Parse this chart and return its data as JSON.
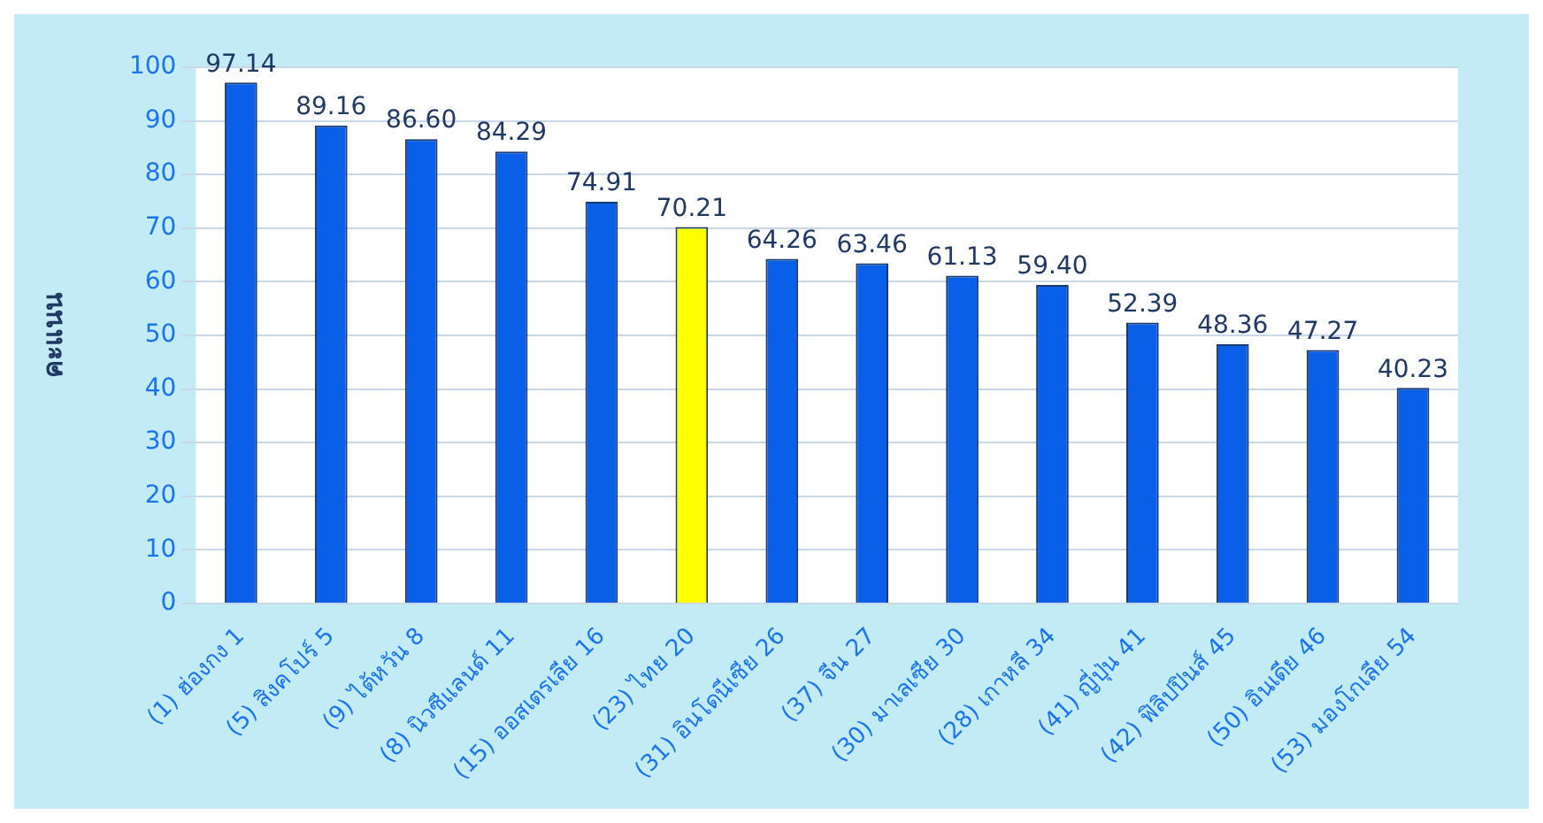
{
  "chart_data": {
    "type": "bar",
    "ylabel": "คะแนน",
    "categories": [
      "(1) ฮ่องกง 1",
      "(5) สิงคโปร์ 5",
      "(9) ไต้หวัน 8",
      "(8) นิวซีแลนด์ 11",
      "(15) ออสเตรเลีย 16",
      "(23) ไทย 20",
      "(31) อินโดนีเซีย 26",
      "(37) จีน 27",
      "(30) มาเลเซีย 30",
      "(28) เกาหลี 34",
      "(41) ญี่ปุ่น 41",
      "(42) ฟิลิปปินส์ 45",
      "(50) อินเดีย 46",
      "(53) มองโกเลีย 54"
    ],
    "values": [
      97.14,
      89.16,
      86.6,
      84.29,
      74.91,
      70.21,
      64.26,
      63.46,
      61.13,
      59.4,
      52.39,
      48.36,
      47.27,
      40.23
    ],
    "value_labels": [
      "97.14",
      "89.16",
      "86.60",
      "84.29",
      "74.91",
      "70.21",
      "64.26",
      "63.46",
      "61.13",
      "59.40",
      "52.39",
      "48.36",
      "47.27",
      "40.23"
    ],
    "colors": [
      "#0a5fe8",
      "#0a5fe8",
      "#0a5fe8",
      "#0a5fe8",
      "#0a5fe8",
      "#ffff00",
      "#0a5fe8",
      "#0a5fe8",
      "#0a5fe8",
      "#0a5fe8",
      "#0a5fe8",
      "#0a5fe8",
      "#0a5fe8",
      "#0a5fe8"
    ],
    "ylim": [
      0,
      100
    ],
    "yticks": [
      0,
      10,
      20,
      30,
      40,
      50,
      60,
      70,
      80,
      90,
      100
    ],
    "grid": "y",
    "legend": false
  }
}
